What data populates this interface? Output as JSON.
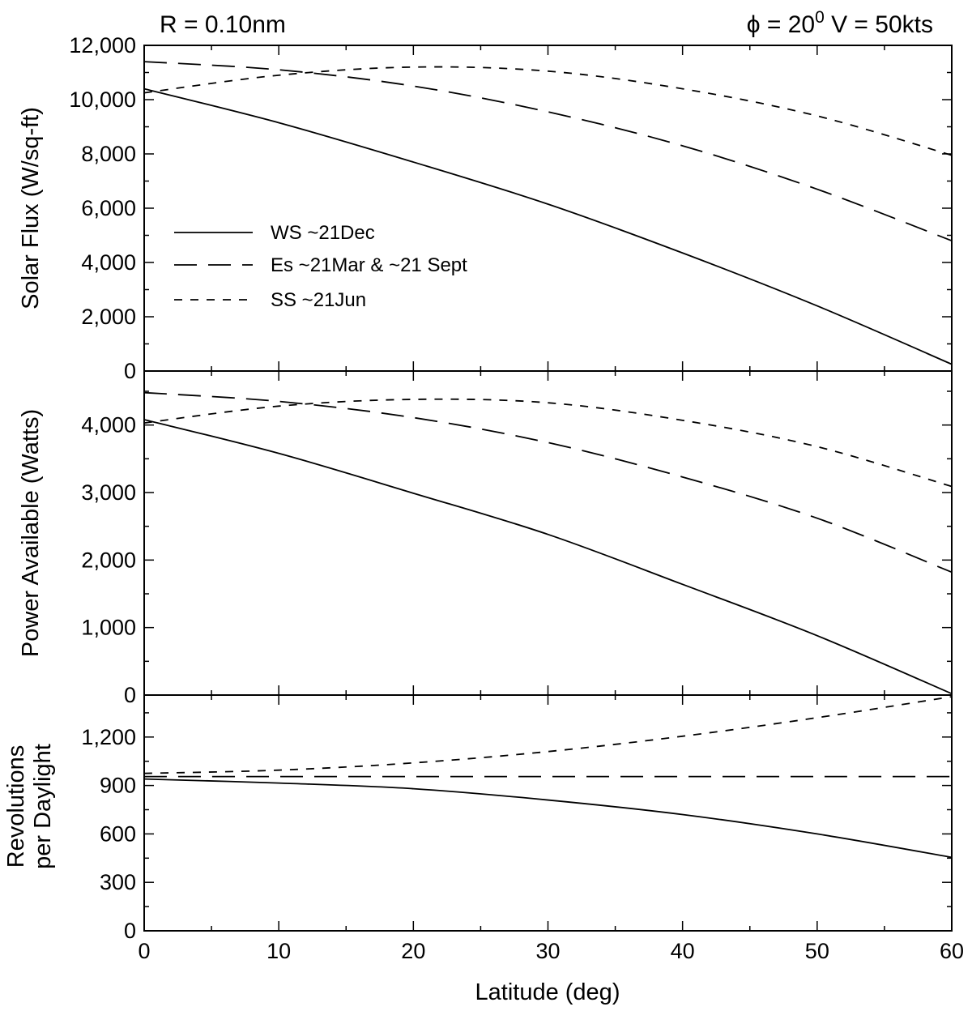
{
  "header": {
    "left": "R = 0.10nm",
    "right_phi_symbol": "ϕ",
    "right_before_sup": " = 20",
    "right_sup": "0",
    "right_after_sup": " V = 50kts"
  },
  "legend": [
    {
      "label": "WS ~21Dec",
      "style": "solid"
    },
    {
      "label": "Es ~21Mar & ~21 Sept",
      "style": "longdash"
    },
    {
      "label": "SS ~21Jun",
      "style": "shortdash"
    }
  ],
  "chart_data": [
    {
      "type": "line",
      "ylabel": "Solar Flux (W/sq-ft)",
      "xlim": [
        0,
        60
      ],
      "ylim": [
        0,
        12000
      ],
      "yticks": [
        0,
        2000,
        4000,
        6000,
        8000,
        10000,
        12000
      ],
      "ytick_labels": [
        "0",
        "2,000",
        "4,000",
        "6,000",
        "8,000",
        "10,000",
        "12,000"
      ],
      "x": [
        0,
        10,
        20,
        30,
        40,
        50,
        60
      ],
      "series": [
        {
          "name": "WS ~21Dec",
          "style": "solid",
          "values": [
            10400,
            9150,
            7700,
            6150,
            4350,
            2400,
            250
          ]
        },
        {
          "name": "Es ~21Mar & ~21 Sept",
          "style": "longdash",
          "values": [
            11400,
            11100,
            10500,
            9550,
            8300,
            6700,
            4800
          ]
        },
        {
          "name": "SS ~21Jun",
          "style": "shortdash",
          "values": [
            10250,
            10900,
            11200,
            11050,
            10400,
            9400,
            7950
          ]
        }
      ]
    },
    {
      "type": "line",
      "ylabel": "Power Available (Watts)",
      "xlim": [
        0,
        60
      ],
      "ylim": [
        0,
        4800
      ],
      "yticks": [
        0,
        1000,
        2000,
        3000,
        4000
      ],
      "ytick_labels": [
        "0",
        "1,000",
        "2,000",
        "3,000",
        "4,000"
      ],
      "x": [
        0,
        10,
        20,
        30,
        40,
        50,
        60
      ],
      "series": [
        {
          "name": "WS ~21Dec",
          "style": "solid",
          "values": [
            4080,
            3580,
            2990,
            2380,
            1640,
            880,
            20
          ]
        },
        {
          "name": "Es ~21Mar & ~21 Sept",
          "style": "longdash",
          "values": [
            4480,
            4350,
            4110,
            3740,
            3230,
            2620,
            1820
          ]
        },
        {
          "name": "SS ~21Jun",
          "style": "shortdash",
          "values": [
            4030,
            4280,
            4380,
            4330,
            4070,
            3680,
            3090
          ]
        }
      ]
    },
    {
      "type": "line",
      "ylabel_lines": [
        "Revolutions",
        "per Daylight"
      ],
      "xlabel": "Latitude (deg)",
      "xlim": [
        0,
        60
      ],
      "ylim": [
        0,
        1460
      ],
      "yticks": [
        0,
        300,
        600,
        900,
        1200
      ],
      "ytick_labels": [
        "0",
        "300",
        "600",
        "900",
        "1,200"
      ],
      "xticks": [
        0,
        10,
        20,
        30,
        40,
        50,
        60
      ],
      "xtick_labels": [
        "0",
        "10",
        "20",
        "30",
        "40",
        "50",
        "60"
      ],
      "x": [
        0,
        10,
        20,
        30,
        40,
        50,
        60
      ],
      "series": [
        {
          "name": "WS ~21Dec",
          "style": "solid",
          "values": [
            940,
            915,
            880,
            810,
            720,
            600,
            455
          ]
        },
        {
          "name": "Es ~21Mar & ~21 Sept",
          "style": "longdash",
          "values": [
            955,
            955,
            955,
            955,
            955,
            955,
            955
          ]
        },
        {
          "name": "SS ~21Jun",
          "style": "shortdash",
          "values": [
            975,
            995,
            1040,
            1110,
            1205,
            1320,
            1450
          ]
        }
      ]
    }
  ]
}
